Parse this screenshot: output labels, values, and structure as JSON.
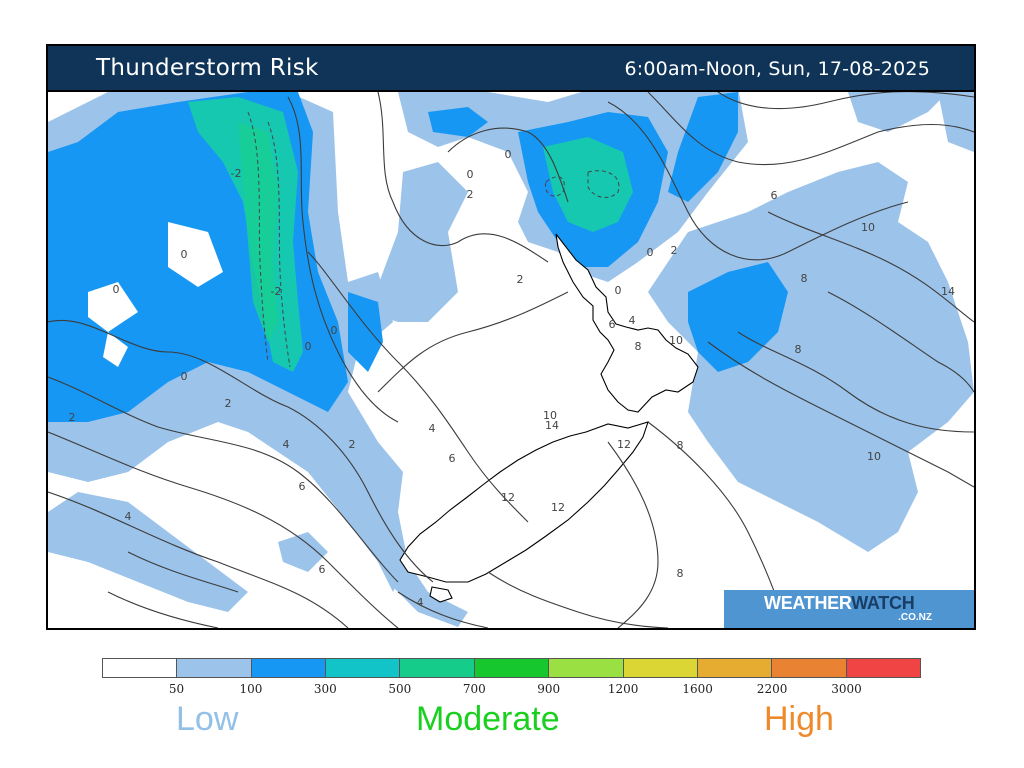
{
  "header": {
    "title": "Thunderstorm Risk",
    "valid_time": "6:00am-Noon, Sun, 17-08-2025"
  },
  "logo": {
    "main_a": "WEATHER",
    "main_b": "WATCH",
    "sub": ".CO.NZ"
  },
  "legend": {
    "colors": [
      "#ffffff",
      "#9cc3ea",
      "#1797f4",
      "#12c3c8",
      "#16cc8a",
      "#16c82e",
      "#9ae043",
      "#dcd634",
      "#e6ac32",
      "#ea8234",
      "#f04444"
    ],
    "ticks": [
      "50",
      "100",
      "300",
      "500",
      "700",
      "900",
      "1200",
      "1600",
      "2200",
      "3000"
    ],
    "low_label": "Low",
    "moderate_label": "Moderate",
    "high_label": "High",
    "low_color": "#93c0e6",
    "moderate_color": "#19d01f",
    "high_color": "#ee8a2b"
  },
  "contour_labels": [
    {
      "text": "-2"
    },
    {
      "text": "-2"
    },
    {
      "text": "0"
    },
    {
      "text": "0"
    },
    {
      "text": "0"
    },
    {
      "text": "0"
    },
    {
      "text": "0"
    },
    {
      "text": "0"
    },
    {
      "text": "0"
    },
    {
      "text": "0"
    },
    {
      "text": "0"
    },
    {
      "text": "2"
    },
    {
      "text": "2"
    },
    {
      "text": "2"
    },
    {
      "text": "2"
    },
    {
      "text": "2"
    },
    {
      "text": "2"
    },
    {
      "text": "4"
    },
    {
      "text": "4"
    },
    {
      "text": "4"
    },
    {
      "text": "4"
    },
    {
      "text": "4"
    },
    {
      "text": "6"
    },
    {
      "text": "6"
    },
    {
      "text": "6"
    },
    {
      "text": "6"
    },
    {
      "text": "6"
    },
    {
      "text": "8"
    },
    {
      "text": "8"
    },
    {
      "text": "8"
    },
    {
      "text": "8"
    },
    {
      "text": "8"
    },
    {
      "text": "8"
    },
    {
      "text": "8"
    },
    {
      "text": "10"
    },
    {
      "text": "10"
    },
    {
      "text": "10"
    },
    {
      "text": "10"
    },
    {
      "text": "12"
    },
    {
      "text": "12"
    },
    {
      "text": "12"
    },
    {
      "text": "14"
    },
    {
      "text": "14"
    },
    {
      "text": "6"
    },
    {
      "text": "4"
    }
  ]
}
